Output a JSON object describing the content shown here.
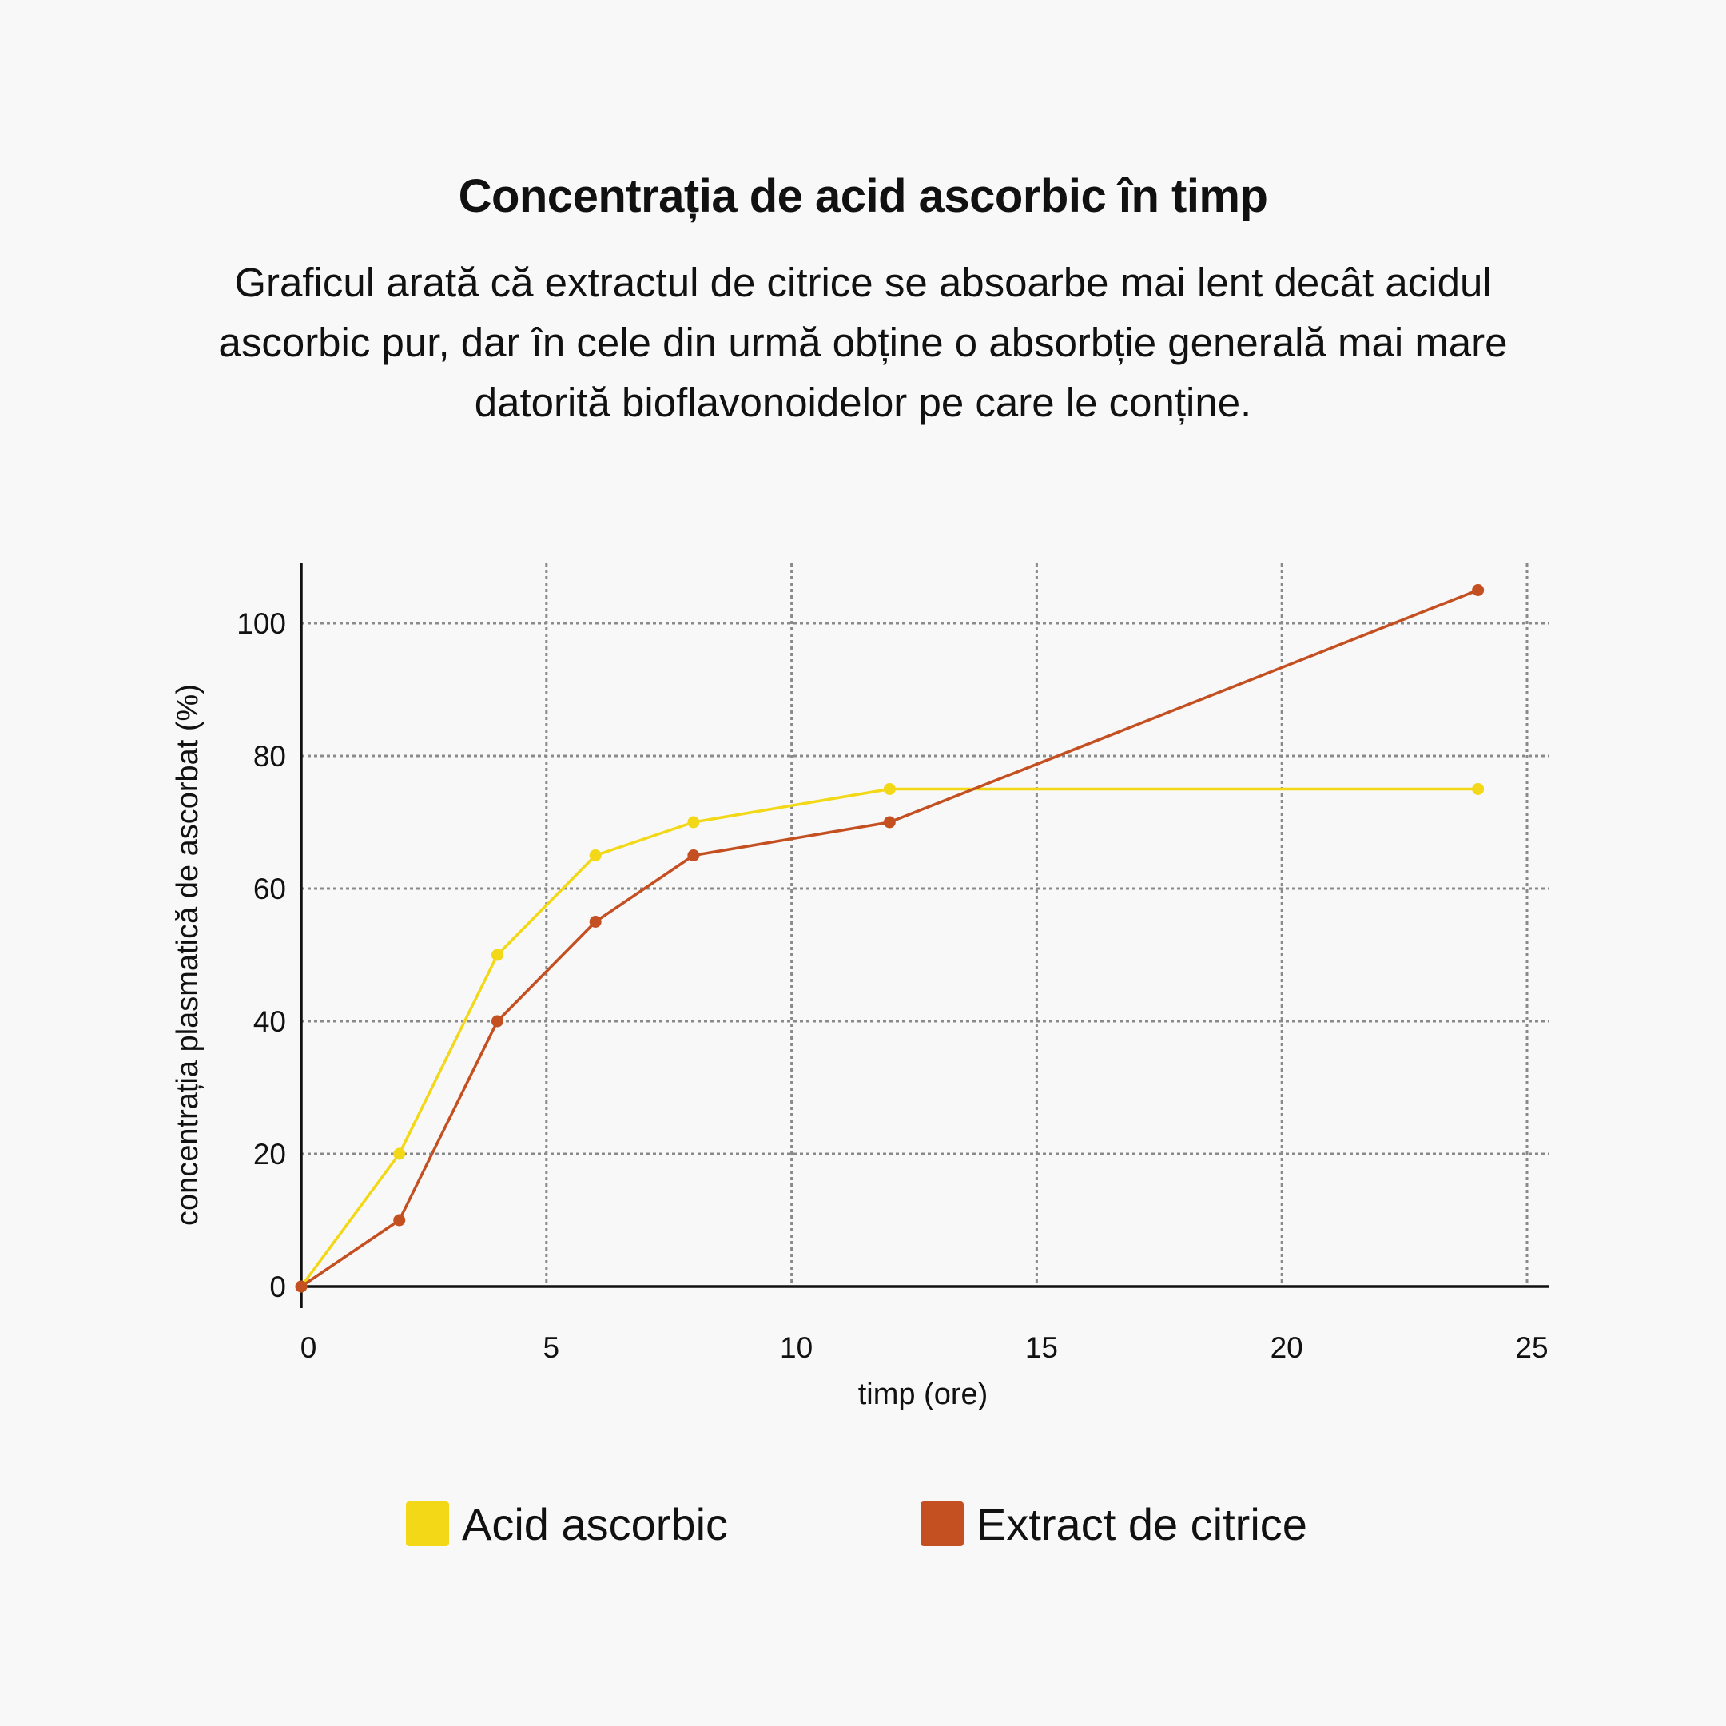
{
  "chart_data": {
    "type": "line",
    "title": "Concentrația de acid ascorbic în timp",
    "subtitle": "Graficul arată că extractul de citrice se absoarbe mai lent decât acidul ascorbic pur, dar în cele din urmă obține o absorbție generală mai mare datorită bioflavonoidelor pe care le conține.",
    "xlabel": "timp (ore)",
    "ylabel": "concentrația plasmatică de ascorbat (%)",
    "xlim": [
      0,
      25
    ],
    "ylim": [
      0,
      110
    ],
    "x_ticks": [
      0,
      5,
      10,
      15,
      20,
      25
    ],
    "y_ticks": [
      0,
      20,
      40,
      60,
      80,
      100
    ],
    "x_tick_labels": [
      "0",
      "5",
      "10",
      "15",
      "20",
      "25"
    ],
    "y_tick_labels": [
      "0",
      "20",
      "40",
      "60",
      "80",
      "100"
    ],
    "grid": true,
    "legend_position": "bottom",
    "series": [
      {
        "name": "Acid ascorbic",
        "color": "#f2d816",
        "x": [
          0,
          2,
          4,
          6,
          8,
          12,
          24
        ],
        "y": [
          0,
          20,
          50,
          65,
          70,
          75,
          75
        ]
      },
      {
        "name": "Extract de citrice",
        "color": "#c44f21",
        "x": [
          0,
          2,
          4,
          6,
          8,
          12,
          24
        ],
        "y": [
          0,
          10,
          40,
          55,
          65,
          70,
          105
        ]
      }
    ]
  }
}
